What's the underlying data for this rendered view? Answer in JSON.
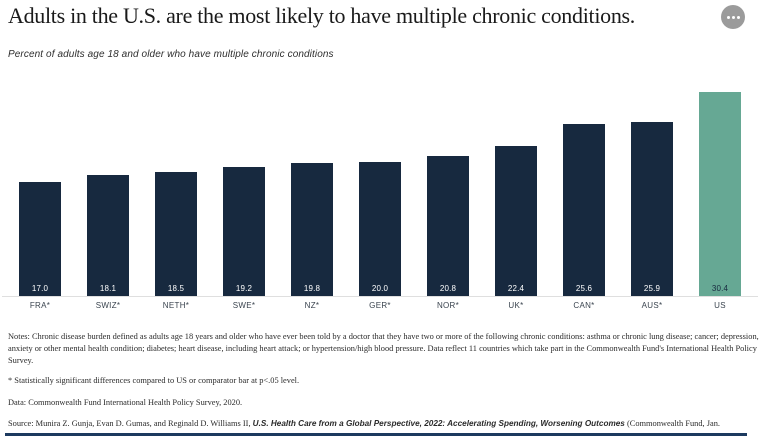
{
  "header": {
    "title": "Adults in the U.S. are the most likely to have multiple chronic conditions.",
    "subtitle": "Percent of adults age 18 and older who have multiple chronic conditions",
    "menu_icon": "ellipsis-icon"
  },
  "colors": {
    "bar_default": "#17293f",
    "bar_highlight": "#66a894",
    "value_label_default": "#ffffff",
    "value_label_highlight": "#17293f",
    "axis_line": "#dfdfdf",
    "bottom_rule": "#1d3a5f",
    "menu_button": "#9b9b9b"
  },
  "chart_data": {
    "type": "bar",
    "categories": [
      "FRA*",
      "SWIZ*",
      "NETH*",
      "SWE*",
      "NZ*",
      "GER*",
      "NOR*",
      "UK*",
      "CAN*",
      "AUS*",
      "US"
    ],
    "values": [
      17.0,
      18.1,
      18.5,
      19.2,
      19.8,
      20.0,
      20.8,
      22.4,
      25.6,
      25.9,
      30.4
    ],
    "value_labels": [
      "17.0",
      "18.1",
      "18.5",
      "19.2",
      "19.8",
      "20.0",
      "20.8",
      "22.4",
      "25.6",
      "25.9",
      "30.4"
    ],
    "highlight_category": "US",
    "title": "Adults in the U.S. are the most likely to have multiple chronic conditions.",
    "subtitle": "Percent of adults age 18 and older who have multiple chronic conditions",
    "xlabel": "",
    "ylabel": "",
    "ylim": [
      0,
      30.4
    ],
    "grid": false,
    "legend": false,
    "value_label_position": "inside-base",
    "bar_color_note": "all bars navy except US which is green highlight"
  },
  "footnotes": {
    "notes": "Notes: Chronic disease burden defined as adults age 18 years and older who have ever been told by a doctor that they have two or more of the following chronic conditions: asthma or chronic lung disease; cancer; depression, anxiety or other mental health condition; diabetes; heart disease, including heart attack; or hypertension/high blood pressure. Data reflect 11 countries which take part in the Commonwealth Fund's International Health Policy Survey.",
    "significance": "* Statistically significant differences compared to US or comparator bar at p<.05 level.",
    "data_line": "Data: Commonwealth Fund International Health Policy Survey, 2020.",
    "source_prefix": "Source: Munira Z. Gunja, Evan D. Gumas, and Reginald D. Williams II, ",
    "source_title": "U.S. Health Care from a Global Perspective, 2022: Accelerating Spending, Worsening Outcomes",
    "source_suffix": " (Commonwealth Fund, Jan."
  }
}
